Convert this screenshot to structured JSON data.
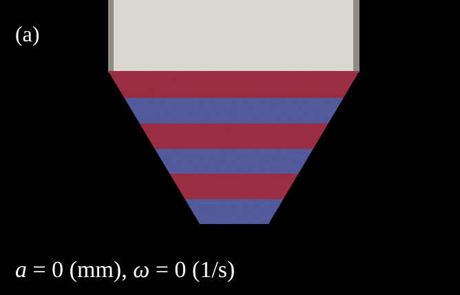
{
  "label": "(a)",
  "caption": {
    "parts": [
      "a",
      " = 0 (mm), ",
      "ω",
      " = 0 (1/s)"
    ]
  }
}
